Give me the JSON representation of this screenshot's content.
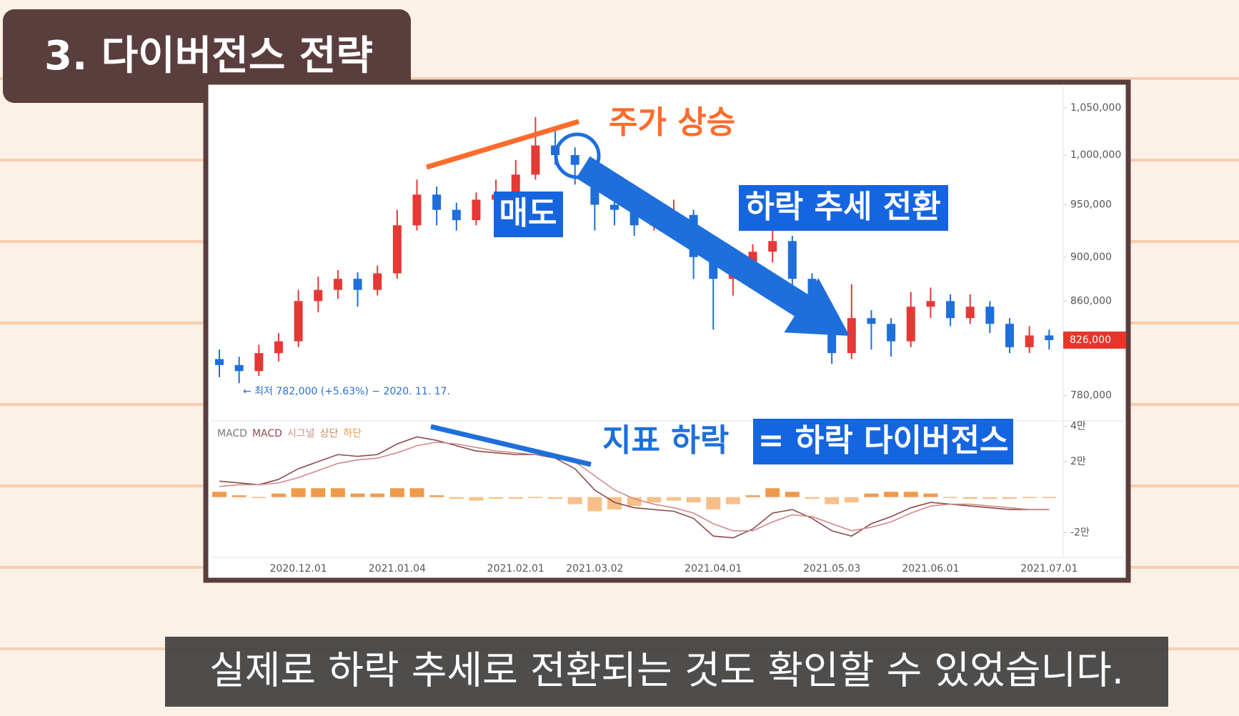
{
  "header": {
    "title": "3. 다이버전스 전략"
  },
  "caption": "실제로 하락 추세로 전환되는 것도 확인할 수 있었습니다.",
  "chart_data": {
    "type": "candlestick",
    "categories": [
      null,
      null,
      null,
      null,
      "2020.12.01",
      null,
      null,
      null,
      null,
      "2021.01.04",
      null,
      null,
      null,
      null,
      null,
      "2021.02.01",
      null,
      null,
      null,
      "2021.03.02",
      null,
      null,
      null,
      null,
      null,
      "2021.04.01",
      null,
      null,
      null,
      null,
      null,
      "2021.05.03",
      null,
      null,
      null,
      null,
      "2021.06.01",
      null,
      null,
      null,
      null,
      null,
      "2021.07.01"
    ],
    "open": [
      810000,
      805000,
      800000,
      815000,
      825000,
      860000,
      870000,
      880000,
      870000,
      885000,
      930000,
      960000,
      945000,
      935000,
      955000,
      960000,
      980000,
      1010000,
      1000000,
      990000,
      950000,
      945000,
      930000,
      935000,
      940000,
      900000,
      880000,
      890000,
      905000,
      915000,
      880000,
      850000,
      815000,
      845000,
      840000,
      825000,
      855000,
      860000,
      845000,
      855000,
      840000,
      820000,
      830000
    ],
    "high": [
      818000,
      812000,
      822000,
      832000,
      870000,
      882000,
      888000,
      886000,
      892000,
      945000,
      975000,
      968000,
      952000,
      962000,
      975000,
      995000,
      1040000,
      1025000,
      1008000,
      995000,
      965000,
      952000,
      950000,
      955000,
      945000,
      905000,
      898000,
      912000,
      935000,
      920000,
      885000,
      858000,
      875000,
      852000,
      845000,
      868000,
      872000,
      866000,
      866000,
      860000,
      845000,
      838000,
      835000
    ],
    "low": [
      795000,
      790000,
      796000,
      808000,
      820000,
      850000,
      862000,
      855000,
      865000,
      880000,
      925000,
      930000,
      925000,
      930000,
      945000,
      955000,
      975000,
      990000,
      970000,
      925000,
      930000,
      920000,
      925000,
      925000,
      880000,
      835000,
      865000,
      880000,
      895000,
      870000,
      840000,
      806000,
      810000,
      818000,
      812000,
      820000,
      845000,
      838000,
      840000,
      832000,
      815000,
      815000,
      818000
    ],
    "close": [
      805000,
      800000,
      815000,
      825000,
      860000,
      870000,
      880000,
      870000,
      885000,
      930000,
      960000,
      945000,
      935000,
      955000,
      960000,
      980000,
      1010000,
      1000000,
      990000,
      950000,
      945000,
      930000,
      935000,
      940000,
      900000,
      880000,
      890000,
      905000,
      915000,
      880000,
      850000,
      815000,
      845000,
      840000,
      825000,
      855000,
      860000,
      845000,
      855000,
      840000,
      820000,
      830000,
      826000
    ],
    "up_color": "#e53935",
    "down_color": "#1e6fd9",
    "ylim": [
      761000,
      1064000
    ],
    "log_scale": true,
    "yticks": [
      {
        "value": 1050000,
        "label": "1,050,000"
      },
      {
        "value": 1000000,
        "label": "1,000,000"
      },
      {
        "value": 950000,
        "label": "950,000"
      },
      {
        "value": 900000,
        "label": "900,000"
      },
      {
        "value": 860000,
        "label": "860,000"
      },
      {
        "value": 780000,
        "label": "780,000"
      }
    ],
    "last_price": {
      "value": 826000,
      "label": "826,000",
      "color": "#e8352b"
    },
    "macd_panel": {
      "label": "MACD",
      "ylim": [
        -34000,
        43000
      ],
      "yticks": [
        {
          "value": 40000,
          "label": "4만"
        },
        {
          "value": 20000,
          "label": "2만"
        },
        {
          "value": -20000,
          "label": "-2만"
        }
      ],
      "macd": {
        "name": "MACD",
        "color": "#8a4a4a",
        "values": [
          9000,
          8000,
          7000,
          10000,
          16000,
          20000,
          24000,
          23000,
          24000,
          30000,
          34000,
          32000,
          29000,
          26000,
          25000,
          24000,
          24000,
          22000,
          16000,
          4000,
          -3000,
          -6000,
          -7000,
          -8000,
          -12000,
          -22000,
          -23000,
          -18000,
          -9000,
          -7000,
          -12000,
          -19000,
          -22000,
          -15000,
          -11000,
          -6000,
          -3000,
          -4000,
          -5000,
          -6000,
          -7000,
          -7000,
          -7000
        ]
      },
      "signal": {
        "name": "시그널",
        "color": "#d08a8a",
        "values": [
          6000,
          7000,
          7000,
          8000,
          11000,
          15000,
          19000,
          21000,
          22000,
          25000,
          29000,
          31000,
          30000,
          28000,
          26000,
          25000,
          24000,
          23000,
          20000,
          12000,
          4000,
          -1000,
          -4000,
          -6000,
          -9000,
          -15000,
          -19000,
          -19000,
          -14000,
          -10000,
          -11000,
          -15000,
          -19000,
          -17000,
          -14000,
          -9000,
          -5000,
          -4000,
          -4000,
          -5000,
          -6000,
          -7000,
          -7000
        ]
      },
      "histogram": {
        "up_name": "상단",
        "up_color": "#ef9a4a",
        "down_name": "하단",
        "down_color": "#f7c08a",
        "values": [
          3000,
          1000,
          0,
          2000,
          5000,
          5000,
          5000,
          2000,
          2000,
          5000,
          5000,
          1000,
          -1000,
          -2000,
          -1000,
          -1000,
          0,
          -1000,
          -4000,
          -8000,
          -7000,
          -5000,
          -3000,
          -2000,
          -3000,
          -7000,
          -4000,
          1000,
          5000,
          3000,
          -1000,
          -4000,
          -3000,
          2000,
          3000,
          3000,
          2000,
          0,
          -1000,
          -1000,
          -1000,
          0,
          0
        ]
      }
    },
    "annotations": [
      "주가 상승",
      "매도",
      "하락 추세 전환",
      "지표 하락",
      "= 하락 다이버전스",
      "← 최저 782,000 (+5.63%) − 2020. 11. 17."
    ]
  }
}
